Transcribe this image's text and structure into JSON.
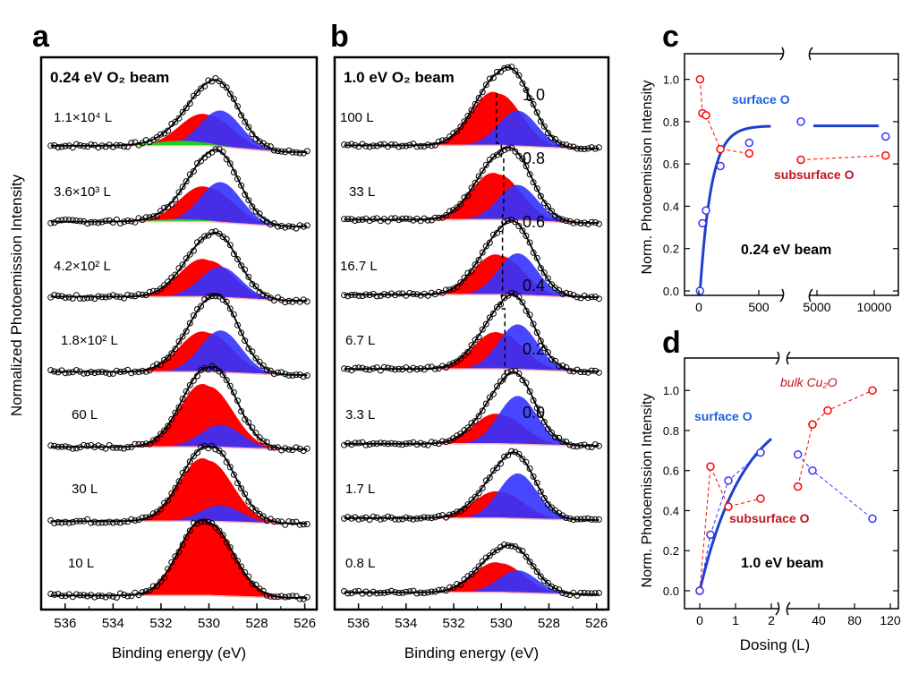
{
  "figure": {
    "ylabel_left": "Normalized Photoemission Intensity",
    "panel_letters": [
      "a",
      "b",
      "c",
      "d"
    ]
  },
  "colors": {
    "red": "#ff0000",
    "blue": "#3333ff",
    "green": "#22cc22",
    "envelope": "#000000",
    "background_line": "#ffb0b0",
    "surface_text": "#1f5fe0",
    "subsurface_text": "#c0141e",
    "c_blue_fit": "#1f3fd0"
  },
  "chart_data": [
    {
      "id": "a",
      "type": "line",
      "title": "0.24 eV O₂ beam",
      "xlabel": "Binding energy (eV)",
      "ylabel": "Normalized Photoemission Intensity",
      "xlim": [
        537,
        525.5
      ],
      "x_ticks": [
        536,
        534,
        532,
        530,
        528,
        526
      ],
      "spectra": [
        {
          "label": "1.1×10⁴ L",
          "red_amp": 0.38,
          "red_center": 530.0,
          "blue_amp": 0.45,
          "blue_center": 529.5,
          "green_amp": 0.06,
          "bg": 0.08
        },
        {
          "label": "3.6×10³ L",
          "red_amp": 0.42,
          "red_center": 530.0,
          "blue_amp": 0.5,
          "blue_center": 529.5,
          "green_amp": 0.03,
          "bg": 0.06
        },
        {
          "label": "4.2×10² L",
          "red_amp": 0.45,
          "red_center": 530.0,
          "blue_amp": 0.38,
          "blue_center": 529.5,
          "green_amp": 0.0,
          "bg": 0.05
        },
        {
          "label": "1.8×10² L",
          "red_amp": 0.48,
          "red_center": 530.0,
          "blue_amp": 0.52,
          "blue_center": 529.5,
          "green_amp": 0.0,
          "bg": 0.04
        },
        {
          "label": "60 L",
          "red_amp": 0.75,
          "red_center": 530.0,
          "blue_amp": 0.28,
          "blue_center": 529.5,
          "green_amp": 0.0,
          "bg": 0.03
        },
        {
          "label": "30 L",
          "red_amp": 0.75,
          "red_center": 530.0,
          "blue_amp": 0.2,
          "blue_center": 529.5,
          "green_amp": 0.0,
          "bg": 0.03
        },
        {
          "label": "10 L",
          "red_amp": 0.9,
          "red_center": 530.0,
          "blue_amp": 0.0,
          "blue_center": 529.5,
          "green_amp": 0.0,
          "bg": 0.03
        }
      ]
    },
    {
      "id": "b",
      "type": "line",
      "title": "1.0 eV O₂ beam",
      "xlabel": "Binding energy (eV)",
      "xlim": [
        537,
        525.5
      ],
      "x_ticks": [
        536,
        534,
        532,
        530,
        528,
        526
      ],
      "fraction_scale": [
        "1.0",
        "0.8",
        "0.6",
        "0.4",
        "0.2",
        "0.0"
      ],
      "spectra": [
        {
          "label": "100 L",
          "red_amp": 0.8,
          "red_center": 530.1,
          "blue_amp": 0.55,
          "blue_center": 529.3,
          "bg": 0.05
        },
        {
          "label": "33 L",
          "red_amp": 0.7,
          "red_center": 530.1,
          "blue_amp": 0.55,
          "blue_center": 529.3,
          "bg": 0.05
        },
        {
          "label": "16.7 L",
          "red_amp": 0.6,
          "red_center": 530.0,
          "blue_amp": 0.65,
          "blue_center": 529.3,
          "bg": 0.04
        },
        {
          "label": "6.7 L",
          "red_amp": 0.55,
          "red_center": 530.0,
          "blue_amp": 0.7,
          "blue_center": 529.3,
          "bg": 0.04
        },
        {
          "label": "3.3 L",
          "red_amp": 0.45,
          "red_center": 530.0,
          "blue_amp": 0.75,
          "blue_center": 529.3,
          "bg": 0.03
        },
        {
          "label": "1.7 L",
          "red_amp": 0.4,
          "red_center": 530.0,
          "blue_amp": 0.7,
          "blue_center": 529.3,
          "bg": 0.03
        },
        {
          "label": "0.8 L",
          "red_amp": 0.45,
          "red_center": 530.0,
          "blue_amp": 0.35,
          "blue_center": 529.3,
          "bg": 0.03
        }
      ]
    },
    {
      "id": "c",
      "type": "scatter",
      "ylabel": "Norm. Photoemission Intensity",
      "ylim": [
        0.0,
        1.1
      ],
      "y_ticks": [
        "0.0",
        "0.2",
        "0.4",
        "0.6",
        "0.8",
        "1.0"
      ],
      "x_ticks_left": [
        0,
        500
      ],
      "x_ticks_right": [
        5000,
        10000
      ],
      "x_tick_labels": [
        "0",
        "500",
        "5000",
        "10000"
      ],
      "annotation": "0.24 eV beam",
      "series": [
        {
          "name": "surface O",
          "x": [
            10,
            30,
            60,
            180,
            420,
            3600,
            11000
          ],
          "y": [
            0.0,
            0.32,
            0.38,
            0.59,
            0.7,
            0.8,
            0.73
          ]
        },
        {
          "name": "subsurface O",
          "x": [
            10,
            30,
            60,
            180,
            420,
            3600,
            11000
          ],
          "y": [
            1.0,
            0.84,
            0.83,
            0.67,
            0.65,
            0.62,
            0.64
          ]
        }
      ],
      "fit_surface": {
        "plateau": 0.78,
        "rate": 0.0105
      }
    },
    {
      "id": "d",
      "type": "scatter",
      "xlabel": "Dosing  (L)",
      "ylabel": "Norm. Photoemission Intensity",
      "ylim": [
        -0.05,
        1.1
      ],
      "y_ticks": [
        "0.0",
        "0.2",
        "0.4",
        "0.6",
        "0.8",
        "1.0"
      ],
      "x_ticks_left": [
        0,
        1,
        2
      ],
      "x_ticks_right": [
        20,
        40,
        60,
        80,
        100,
        120
      ],
      "x_tick_labels": [
        "0",
        "1",
        "2",
        "40",
        "80",
        "120"
      ],
      "annotation": "1.0 eV beam",
      "series": [
        {
          "name": "surface O",
          "x": [
            0.0,
            0.3,
            0.8,
            1.7,
            16.7,
            33,
            100
          ],
          "y": [
            0.0,
            0.28,
            0.55,
            0.69,
            0.68,
            0.6,
            0.36
          ]
        },
        {
          "name": "subsurface O",
          "x": [
            0.0,
            0.3,
            0.8,
            1.7,
            16.7,
            33
          ],
          "y": [
            0.0,
            0.62,
            0.42,
            0.46,
            0.52,
            0.83
          ]
        },
        {
          "name": "bulk Cu₂O",
          "x": [
            33,
            50,
            100
          ],
          "y": [
            0.83,
            0.9,
            1.0
          ]
        }
      ],
      "fit_surface": {
        "plateau": 0.95,
        "rate": 0.8
      }
    }
  ]
}
